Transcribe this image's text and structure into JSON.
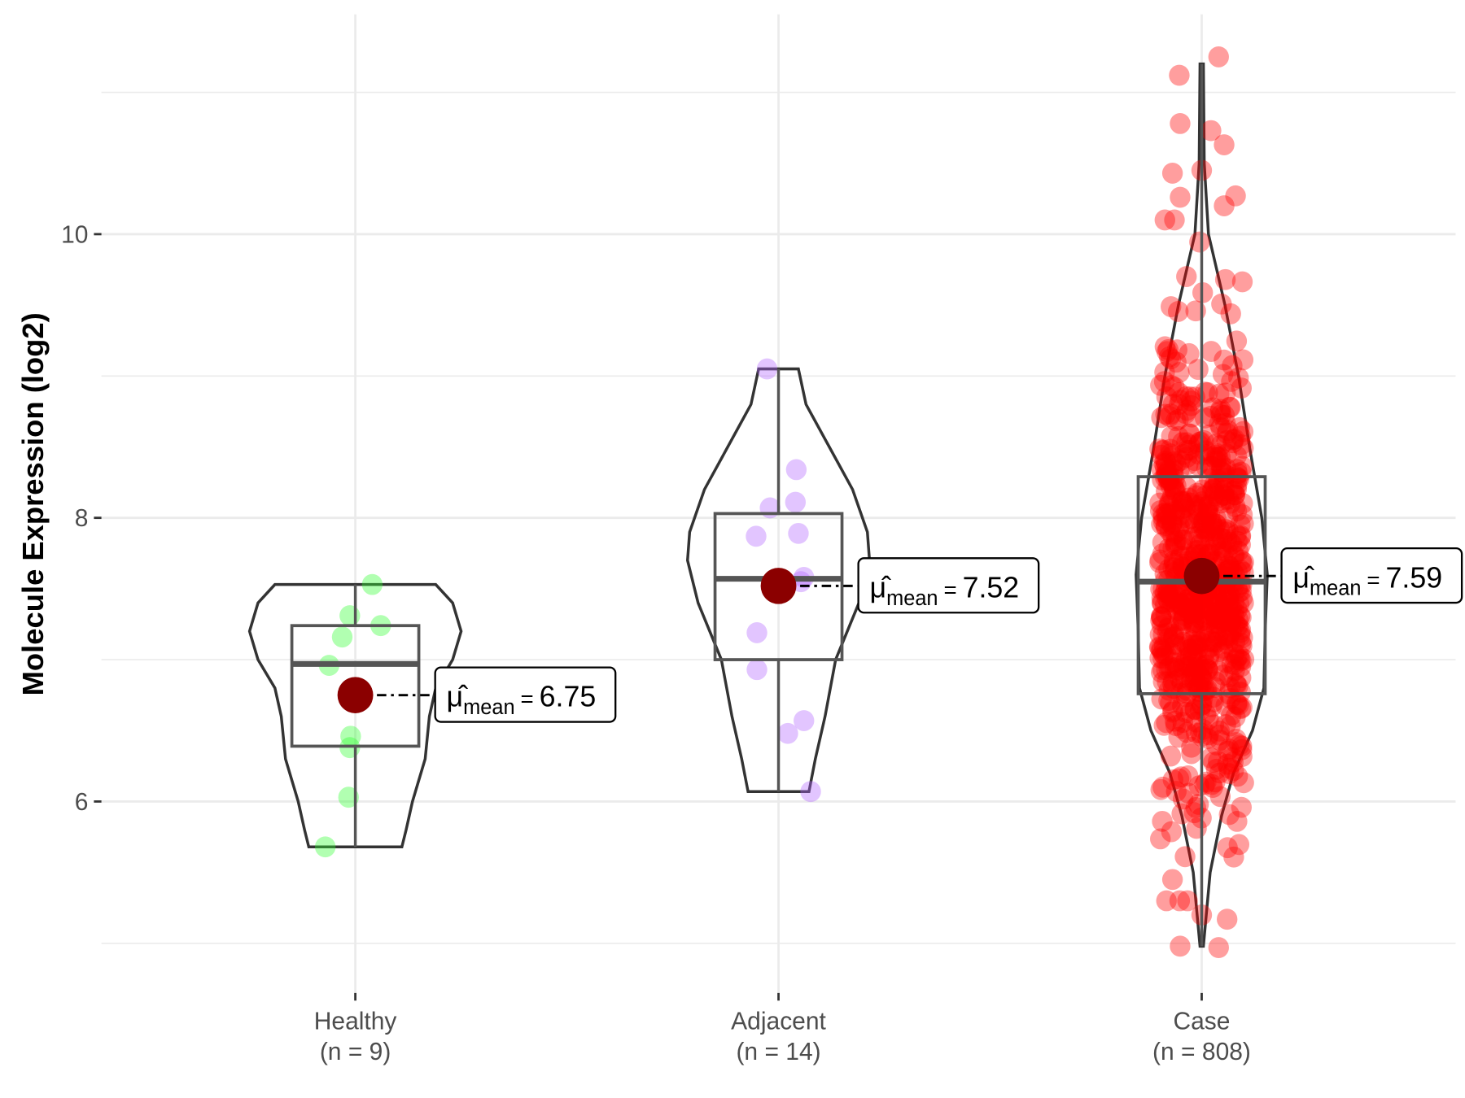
{
  "chart_data": {
    "type": "violin-box-jitter",
    "title": "",
    "xlabel": "",
    "ylabel": "Molecule Expression (log2)",
    "ylim": [
      4.65,
      11.55
    ],
    "yticks": [
      6,
      8,
      10
    ],
    "ytick_labels": [
      "6",
      "8",
      "10"
    ],
    "grid": true,
    "categories": [
      {
        "name": "Healthy",
        "n_label": "(n = 9)",
        "color": "#33FF33",
        "mean": 6.75,
        "mean_label": "6.75",
        "box": {
          "min": 5.68,
          "q1": 6.39,
          "median": 6.97,
          "q3": 7.24,
          "max": 7.53
        },
        "violin": [
          [
            7.53,
            0.19
          ],
          [
            7.4,
            0.23
          ],
          [
            7.2,
            0.25
          ],
          [
            7.0,
            0.23
          ],
          [
            6.8,
            0.19
          ],
          [
            6.6,
            0.175
          ],
          [
            6.3,
            0.165
          ],
          [
            6.0,
            0.135
          ],
          [
            5.8,
            0.12
          ],
          [
            5.68,
            0.11
          ]
        ],
        "points": [
          [
            0.04,
            7.53
          ],
          [
            -0.013,
            7.31
          ],
          [
            0.06,
            7.24
          ],
          [
            -0.031,
            7.16
          ],
          [
            -0.062,
            6.96
          ],
          [
            -0.011,
            6.46
          ],
          [
            -0.013,
            6.38
          ],
          [
            -0.016,
            6.03
          ],
          [
            -0.071,
            5.68
          ]
        ]
      },
      {
        "name": "Adjacent",
        "n_label": "(n = 14)",
        "color": "#B266FF",
        "mean": 7.52,
        "mean_label": "7.52",
        "box": {
          "min": 6.07,
          "q1": 7.0,
          "median": 7.57,
          "q3": 8.03,
          "max": 9.05
        },
        "violin": [
          [
            9.05,
            0.047
          ],
          [
            8.8,
            0.065
          ],
          [
            8.5,
            0.12
          ],
          [
            8.2,
            0.175
          ],
          [
            7.9,
            0.21
          ],
          [
            7.7,
            0.215
          ],
          [
            7.4,
            0.19
          ],
          [
            7.0,
            0.135
          ],
          [
            6.6,
            0.11
          ],
          [
            6.3,
            0.087
          ],
          [
            6.07,
            0.072
          ]
        ],
        "points": [
          [
            -0.027,
            9.05
          ],
          [
            0.042,
            8.34
          ],
          [
            -0.02,
            8.07
          ],
          [
            0.04,
            8.11
          ],
          [
            -0.053,
            7.87
          ],
          [
            0.047,
            7.89
          ],
          [
            0.06,
            7.58
          ],
          [
            0.053,
            7.55
          ],
          [
            0.0,
            7.52
          ],
          [
            -0.051,
            7.19
          ],
          [
            -0.051,
            6.93
          ],
          [
            0.06,
            6.57
          ],
          [
            0.022,
            6.48
          ],
          [
            0.076,
            6.07
          ]
        ]
      },
      {
        "name": "Case",
        "n_label": "(n = 808)",
        "color": "#FF0000",
        "mean": 7.59,
        "mean_label": "7.59",
        "box": {
          "min": 4.98,
          "q1": 6.76,
          "median": 7.55,
          "q3": 8.29,
          "max": 11.2
        },
        "violin": [
          [
            11.2,
            0.004
          ],
          [
            10.5,
            0.006
          ],
          [
            10.0,
            0.016
          ],
          [
            9.5,
            0.055
          ],
          [
            9.0,
            0.087
          ],
          [
            8.5,
            0.113
          ],
          [
            8.0,
            0.142
          ],
          [
            7.6,
            0.155
          ],
          [
            7.2,
            0.15
          ],
          [
            6.8,
            0.147
          ],
          [
            6.5,
            0.12
          ],
          [
            6.2,
            0.075
          ],
          [
            5.9,
            0.047
          ],
          [
            5.5,
            0.02
          ],
          [
            4.98,
            0.004
          ]
        ],
        "points_outliers": [
          [
            0.04,
            11.25
          ],
          [
            -0.053,
            11.12
          ],
          [
            -0.051,
            10.78
          ],
          [
            0.022,
            10.73
          ],
          [
            0.053,
            10.63
          ],
          [
            -0.069,
            10.43
          ],
          [
            0.0,
            10.45
          ],
          [
            -0.051,
            10.26
          ],
          [
            0.08,
            10.27
          ],
          [
            0.053,
            10.2
          ],
          [
            -0.051,
            4.98
          ],
          [
            0.04,
            4.97
          ],
          [
            0.06,
            5.17
          ],
          [
            -0.069,
            5.45
          ],
          [
            0.0,
            5.2
          ]
        ],
        "points_generated": {
          "count": 793,
          "mean": 7.55,
          "sd": 0.8,
          "jitter": 0.1
        }
      }
    ],
    "mean_symbol": "μ̂",
    "mean_subscript": "mean",
    "mean_eq": "="
  }
}
